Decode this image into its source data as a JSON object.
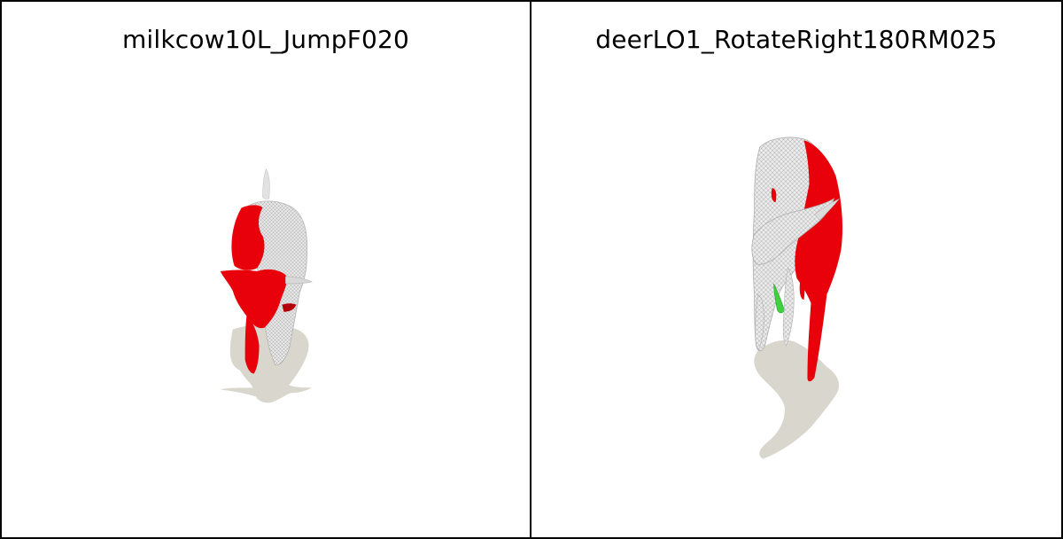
{
  "panels": [
    {
      "title": "milkcow10L_JumpF020",
      "object": "cow mesh render"
    },
    {
      "title": "deerLO1_RotateRight180RM025",
      "object": "deer mesh render"
    }
  ],
  "colors": {
    "highlight_red": "#e8000a",
    "mesh_white": "#e6e6e6",
    "mesh_wire": "#9a9a9a",
    "shadow": "#d8d5cc",
    "accent_green": "#3fd23f",
    "border": "#000000",
    "background": "#ffffff"
  }
}
